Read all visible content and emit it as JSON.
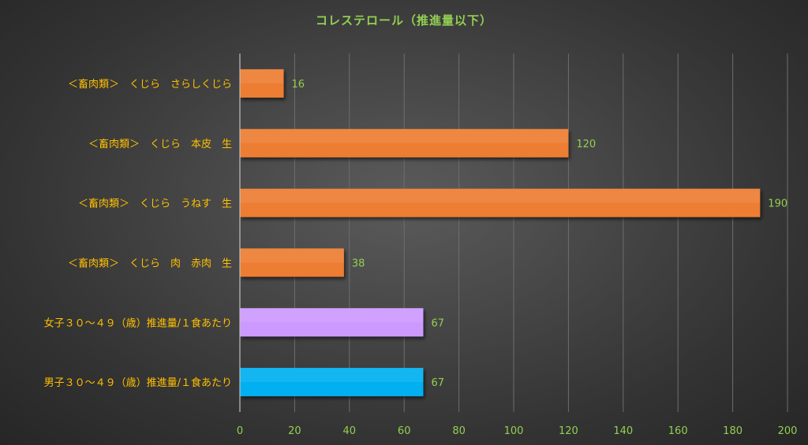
{
  "chart_data": {
    "type": "bar",
    "orientation": "horizontal",
    "title": "コレステロール（推進量以下）",
    "categories": [
      "＜畜肉類＞　くじら　さらしくじら",
      "＜畜肉類＞　くじら　本皮　生",
      "＜畜肉類＞　くじら　うねす　生",
      "＜畜肉類＞　くじら　肉　赤肉　生",
      "女子３０～４９（歳）推進量/１食あたり",
      "男子３０～４９（歳）推進量/１食あたり"
    ],
    "values": [
      16,
      120,
      190,
      38,
      67,
      67
    ],
    "data_labels": [
      "16",
      "120",
      "190",
      "38",
      "67",
      "67"
    ],
    "bar_colors": [
      "#ed7d31",
      "#ed7d31",
      "#ed7d31",
      "#ed7d31",
      "#cc99ff",
      "#00b0f0"
    ],
    "xlim": [
      0,
      200
    ],
    "xticks": [
      0,
      20,
      40,
      60,
      80,
      100,
      120,
      140,
      160,
      180,
      200
    ],
    "xticks_labels": [
      "0",
      "20",
      "40",
      "60",
      "80",
      "100",
      "120",
      "140",
      "160",
      "180",
      "200"
    ],
    "grid": "vertical",
    "xlabel": "",
    "ylabel": ""
  },
  "colors": {
    "title": "#92d050",
    "category_label": "#ffc000",
    "tick_label": "#92d050",
    "data_label": "#92d050",
    "gridline": "#6e6e6e",
    "axis": "#bfbfbf"
  }
}
